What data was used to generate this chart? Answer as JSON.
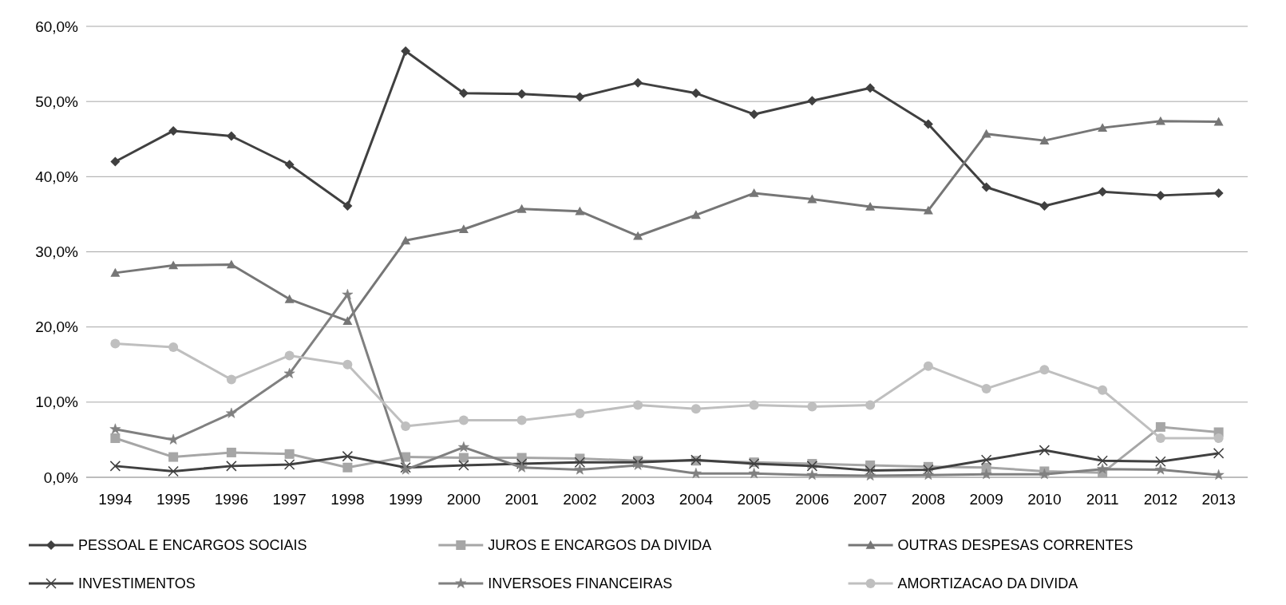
{
  "chart_data": {
    "type": "line",
    "categories": [
      "1994",
      "1995",
      "1996",
      "1997",
      "1998",
      "1999",
      "2000",
      "2001",
      "2002",
      "2003",
      "2004",
      "2005",
      "2006",
      "2007",
      "2008",
      "2009",
      "2010",
      "2011",
      "2012",
      "2013"
    ],
    "ylim": [
      0,
      60
    ],
    "yticks": [
      {
        "value": 0,
        "label": "0,0%"
      },
      {
        "value": 10,
        "label": "10,0%"
      },
      {
        "value": 20,
        "label": "20,0%"
      },
      {
        "value": 30,
        "label": "30,0%"
      },
      {
        "value": 40,
        "label": "40,0%"
      },
      {
        "value": 50,
        "label": "50,0%"
      },
      {
        "value": 60,
        "label": "60,0%"
      }
    ],
    "grid": "y",
    "legend": "bottom",
    "series": [
      {
        "name": "PESSOAL E ENCARGOS SOCIAIS",
        "color": "#404040",
        "marker": "diamond",
        "values": [
          42.0,
          46.1,
          45.4,
          41.6,
          36.1,
          56.7,
          51.1,
          51.0,
          50.6,
          52.5,
          51.1,
          48.3,
          50.1,
          51.8,
          47.0,
          38.6,
          36.1,
          38.0,
          37.5,
          37.8
        ]
      },
      {
        "name": "JUROS E ENCARGOS DA DIVIDA",
        "color": "#a6a6a6",
        "marker": "square",
        "values": [
          5.2,
          2.7,
          3.3,
          3.1,
          1.3,
          2.7,
          2.6,
          2.6,
          2.5,
          2.2,
          2.2,
          2.0,
          1.8,
          1.6,
          1.4,
          1.3,
          0.8,
          0.6,
          6.7,
          6.0
        ]
      },
      {
        "name": "OUTRAS DESPESAS CORRENTES",
        "color": "#767676",
        "marker": "triangle",
        "values": [
          27.2,
          28.2,
          28.3,
          23.7,
          20.8,
          31.5,
          33.0,
          35.7,
          35.4,
          32.1,
          34.9,
          37.8,
          37.0,
          36.0,
          35.5,
          45.7,
          44.8,
          46.5,
          47.4,
          47.3
        ]
      },
      {
        "name": "INVESTIMENTOS",
        "color": "#404040",
        "marker": "cross",
        "values": [
          1.5,
          0.8,
          1.5,
          1.7,
          2.8,
          1.3,
          1.6,
          1.8,
          2.0,
          2.0,
          2.3,
          1.8,
          1.5,
          0.9,
          1.0,
          2.3,
          3.6,
          2.2,
          2.1,
          3.2
        ]
      },
      {
        "name": "INVERSOES FINANCEIRAS",
        "color": "#808080",
        "marker": "star",
        "values": [
          6.4,
          5.0,
          8.5,
          13.8,
          24.3,
          1.0,
          4.0,
          1.3,
          1.0,
          1.6,
          0.5,
          0.5,
          0.3,
          0.2,
          0.3,
          0.4,
          0.4,
          1.1,
          1.0,
          0.3
        ]
      },
      {
        "name": "AMORTIZACAO DA DIVIDA",
        "color": "#bfbfbf",
        "marker": "circle",
        "values": [
          17.8,
          17.3,
          13.0,
          16.2,
          15.0,
          6.8,
          7.6,
          7.6,
          8.5,
          9.6,
          9.1,
          9.6,
          9.4,
          9.6,
          14.8,
          11.8,
          14.3,
          11.6,
          5.2,
          5.2
        ]
      }
    ]
  }
}
